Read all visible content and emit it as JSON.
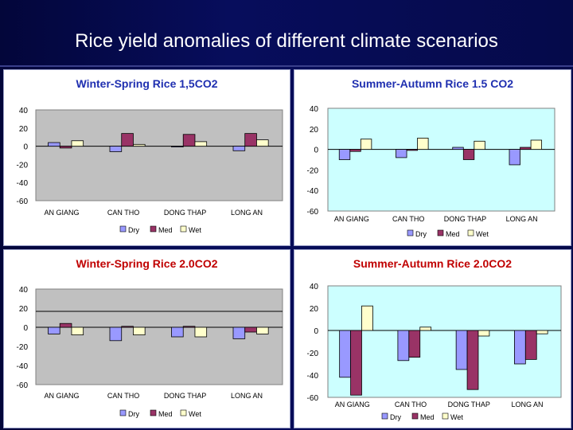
{
  "slide": {
    "title": "Rice yield anomalies of different climate scenarios"
  },
  "colors": {
    "dry": "#9999ff",
    "med": "#993366",
    "wet": "#ffffcc",
    "title_blue": "#1f2fb0",
    "title_red": "#c00000",
    "plot_gray": "#c0c0c0",
    "plot_cyan": "#ccffff"
  },
  "chart_data": [
    {
      "id": "ws15",
      "type": "bar",
      "title": "Winter-Spring Rice 1,5CO2",
      "categories": [
        "AN GIANG",
        "CAN THO",
        "DONG THAP",
        "LONG AN"
      ],
      "series": [
        {
          "name": "Dry",
          "values": [
            4,
            -6,
            0,
            -5
          ]
        },
        {
          "name": "Med",
          "values": [
            -2,
            14,
            13,
            14
          ]
        },
        {
          "name": "Wet",
          "values": [
            6,
            2,
            5,
            7
          ]
        }
      ],
      "yticks": [
        40,
        20,
        0,
        -20,
        -40,
        -60
      ],
      "ylim": [
        -60,
        40
      ],
      "legend": [
        "Dry",
        "Med",
        "Wet"
      ]
    },
    {
      "id": "sa15",
      "type": "bar",
      "title": "Summer-Autumn Rice 1.5 CO2",
      "categories": [
        "AN GIANG",
        "CAN THO",
        "DONG THAP",
        "LONG AN"
      ],
      "series": [
        {
          "name": "Dry",
          "values": [
            -10,
            -8,
            2,
            -15
          ]
        },
        {
          "name": "Med",
          "values": [
            -2,
            -1,
            -10,
            2
          ]
        },
        {
          "name": "Wet",
          "values": [
            10,
            11,
            8,
            9
          ]
        }
      ],
      "yticks": [
        40,
        20,
        0,
        -20,
        -40,
        -60
      ],
      "ylim": [
        -60,
        40
      ],
      "legend": [
        "Dry",
        "Med",
        "Wet"
      ]
    },
    {
      "id": "ws20",
      "type": "bar",
      "title": "Winter-Spring Rice 2.0CO2",
      "categories": [
        "AN GIANG",
        "CAN THO",
        "DONG THAP",
        "LONG AN"
      ],
      "series": [
        {
          "name": "Dry",
          "values": [
            -7,
            -14,
            -10,
            -12
          ]
        },
        {
          "name": "Med",
          "values": [
            4,
            1,
            1,
            -5
          ]
        },
        {
          "name": "Wet",
          "values": [
            -8,
            -8,
            -10,
            -7
          ]
        }
      ],
      "yticks": [
        40,
        20,
        0,
        -20,
        -40,
        -60
      ],
      "ylim": [
        -60,
        40
      ],
      "legend": [
        "Dry",
        "Med",
        "Wet"
      ]
    },
    {
      "id": "sa20",
      "type": "bar",
      "title": "Summer-Autumn Rice  2.0CO2",
      "categories": [
        "AN GIANG",
        "CAN THO",
        "DONG THAP",
        "LONG AN"
      ],
      "series": [
        {
          "name": "Dry",
          "values": [
            -42,
            -27,
            -35,
            -30
          ]
        },
        {
          "name": "Med",
          "values": [
            -58,
            -24,
            -53,
            -26
          ]
        },
        {
          "name": "Wet",
          "values": [
            22,
            3,
            -5,
            -3
          ]
        }
      ],
      "yticks": [
        40,
        20,
        0,
        -20,
        -40,
        -60
      ],
      "ylim": [
        -60,
        40
      ],
      "legend": [
        "Dry",
        "Med",
        "Wet"
      ]
    }
  ]
}
